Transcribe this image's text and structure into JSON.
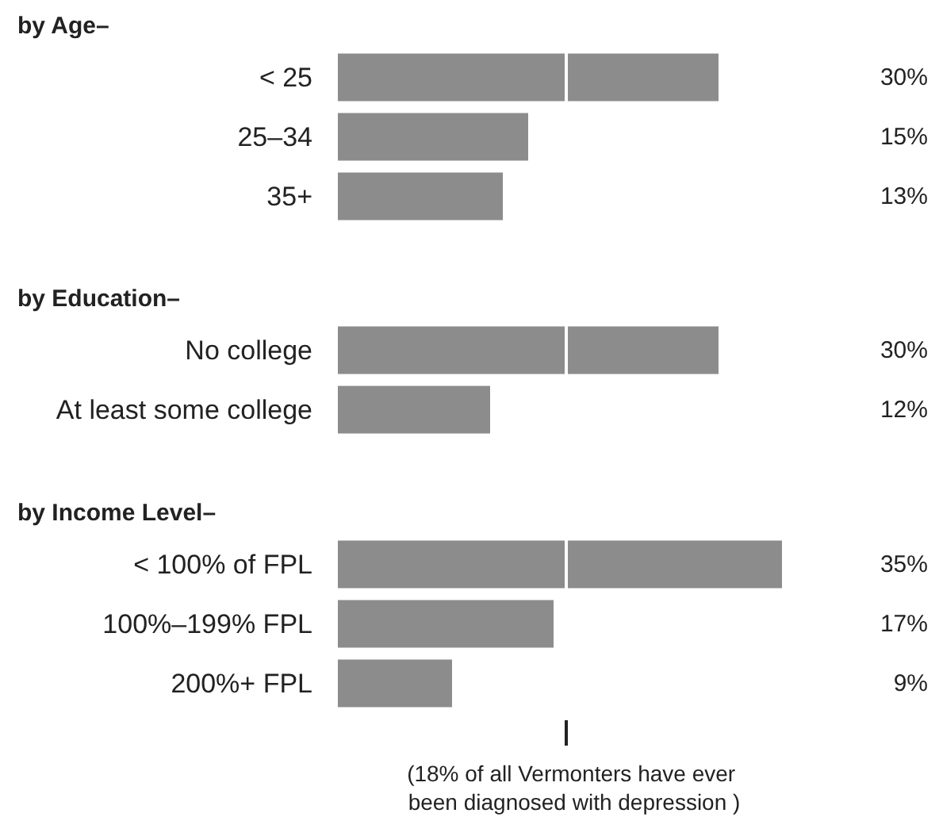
{
  "chart_data": [
    {
      "type": "bar",
      "orientation": "horizontal",
      "title": "by Age–",
      "categories": [
        "< 25",
        "25–34",
        "35+"
      ],
      "values": [
        30,
        15,
        13
      ],
      "value_labels": [
        "30%",
        "15%",
        "13%"
      ],
      "color": "#8c8c8c",
      "ref_lines": [
        {
          "axis": "x",
          "value": 18,
          "color": "#ffffff"
        }
      ]
    },
    {
      "type": "bar",
      "orientation": "horizontal",
      "title": "by Education–",
      "categories": [
        "No college",
        "At least some college"
      ],
      "values": [
        30,
        12
      ],
      "value_labels": [
        "30%",
        "12%"
      ],
      "color": "#8c8c8c",
      "ref_lines": [
        {
          "axis": "x",
          "value": 18,
          "color": "#ffffff"
        }
      ]
    },
    {
      "type": "bar",
      "orientation": "horizontal",
      "title": "by Income Level–",
      "categories": [
        "< 100% of FPL",
        "100%–199% FPL",
        "200%+ FPL"
      ],
      "values": [
        35,
        17,
        9
      ],
      "value_labels": [
        "35%",
        "17%",
        "9%"
      ],
      "color": "#8c8c8c",
      "ref_lines": [
        {
          "axis": "x",
          "value": 18,
          "color": "#ffffff"
        }
      ],
      "annotations": [
        "(18% of all Vermonters have ever been diagnosed with depression )"
      ]
    }
  ]
}
